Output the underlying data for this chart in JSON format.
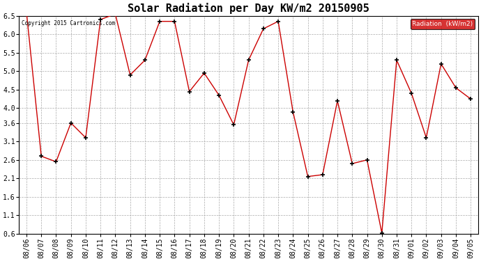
{
  "title": "Solar Radiation per Day KW/m2 20150905",
  "copyright": "Copyright 2015 Cartronics.com",
  "legend_label": "Radiation  (kW/m2)",
  "dates": [
    "08/06",
    "08/07",
    "08/08",
    "08/09",
    "08/10",
    "08/11",
    "08/12",
    "08/13",
    "08/14",
    "08/15",
    "08/16",
    "08/17",
    "08/18",
    "08/19",
    "08/20",
    "08/21",
    "08/22",
    "08/23",
    "08/24",
    "08/25",
    "08/26",
    "08/27",
    "08/28",
    "08/29",
    "08/30",
    "08/31",
    "09/01",
    "09/02",
    "09/03",
    "09/04",
    "09/05"
  ],
  "values": [
    6.6,
    2.7,
    2.55,
    3.6,
    3.2,
    6.4,
    6.55,
    4.9,
    5.3,
    6.35,
    6.35,
    4.45,
    4.95,
    4.35,
    3.55,
    5.3,
    6.15,
    6.35,
    3.9,
    2.15,
    2.2,
    4.2,
    2.5,
    2.6,
    0.62,
    5.3,
    4.4,
    3.2,
    5.2,
    4.55,
    4.25
  ],
  "line_color": "#cc0000",
  "marker": "+",
  "marker_color": "#000000",
  "bg_color": "#ffffff",
  "grid_color": "#aaaaaa",
  "ylim_min": 0.6,
  "ylim_max": 6.5,
  "ytick_vals": [
    0.6,
    1.1,
    1.6,
    2.1,
    2.6,
    3.1,
    3.6,
    4.0,
    4.5,
    5.0,
    5.5,
    6.0,
    6.5
  ],
  "ytick_strs": [
    "0.6",
    "1.1",
    "1.6",
    "2.1",
    "2.6",
    "3.1",
    "3.6",
    "4.0",
    "4.5",
    "5.0",
    "5.5",
    "6.0",
    "6.5"
  ],
  "title_fontsize": 11,
  "tick_fontsize": 7,
  "legend_bg": "#cc0000",
  "legend_text_color": "#ffffff"
}
